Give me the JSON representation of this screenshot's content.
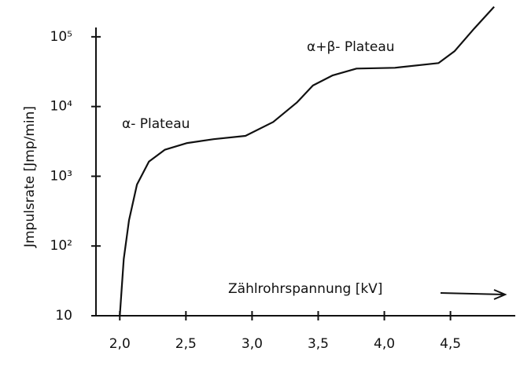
{
  "chart_data": {
    "type": "line",
    "x_label": "Zählrohrspannung [kV]",
    "y_label": "Jmpulsrate [Jmp/min]",
    "annotations": [
      "α- Plateau",
      "α+β- Plateau"
    ],
    "log_y": true,
    "xlim": [
      1.82,
      4.99
    ],
    "ylim": [
      10,
      300000
    ],
    "xticks": [
      {
        "value": 2.0,
        "label": "2,0"
      },
      {
        "value": 2.5,
        "label": "2,5"
      },
      {
        "value": 3.0,
        "label": "3,0"
      },
      {
        "value": 3.5,
        "label": "3,5"
      },
      {
        "value": 4.0,
        "label": "4,0"
      },
      {
        "value": 4.5,
        "label": "4,5"
      }
    ],
    "yticks": [
      10,
      {
        "value": 100,
        "label": "10²"
      },
      {
        "value": 1000,
        "label": "10³"
      },
      {
        "value": 10000,
        "label": "10⁴"
      },
      {
        "value": 100000,
        "label": "10⁵"
      }
    ],
    "series": [
      {
        "color": "#111111",
        "x": [
          2.0,
          2.03,
          2.07,
          2.13,
          2.22,
          2.34,
          2.51,
          2.71,
          2.95,
          3.16,
          3.34,
          3.46,
          3.61,
          3.79,
          4.08,
          4.41,
          4.53,
          4.68,
          4.83
        ],
        "values": [
          10,
          65,
          234,
          760,
          1620,
          2400,
          3000,
          3400,
          3800,
          6000,
          11500,
          20000,
          28000,
          35000,
          36000,
          42000,
          62000,
          132000,
          270000
        ]
      }
    ]
  }
}
